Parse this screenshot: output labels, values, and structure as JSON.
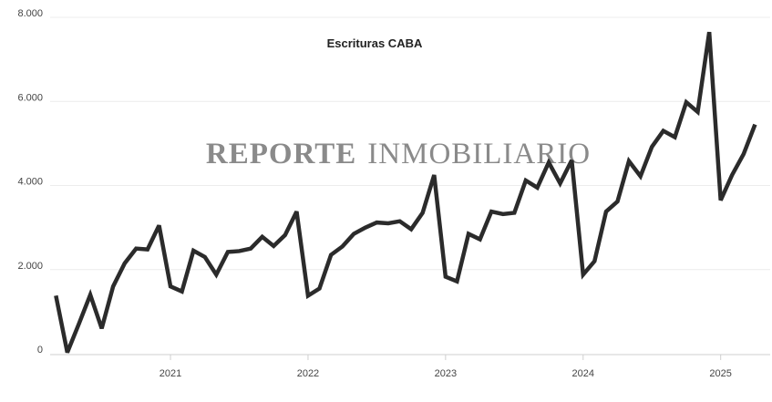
{
  "chart_data": {
    "type": "line",
    "title": "Escrituras CABA",
    "watermark": [
      "REPORTE",
      "INMOBILIARIO"
    ],
    "x": [
      2020.167,
      2020.25,
      2020.333,
      2020.417,
      2020.5,
      2020.583,
      2020.667,
      2020.75,
      2020.833,
      2020.917,
      2021,
      2021.083,
      2021.167,
      2021.25,
      2021.333,
      2021.417,
      2021.5,
      2021.583,
      2021.667,
      2021.75,
      2021.833,
      2021.917,
      2022,
      2022.083,
      2022.167,
      2022.25,
      2022.333,
      2022.417,
      2022.5,
      2022.583,
      2022.667,
      2022.75,
      2022.833,
      2022.917,
      2023,
      2023.083,
      2023.167,
      2023.25,
      2023.333,
      2023.417,
      2023.5,
      2023.583,
      2023.667,
      2023.75,
      2023.833,
      2023.917,
      2024,
      2024.083,
      2024.167,
      2024.25,
      2024.333,
      2024.417,
      2024.5,
      2024.583,
      2024.667,
      2024.75,
      2024.833,
      2024.917,
      2025,
      2025.083,
      2025.167,
      2025.25
    ],
    "series": [
      {
        "name": "Escrituras",
        "color": "#2b2b2b",
        "values": [
          1380,
          30,
          700,
          1400,
          600,
          1600,
          2150,
          2500,
          2480,
          3050,
          1600,
          1480,
          2450,
          2300,
          1880,
          2420,
          2440,
          2500,
          2780,
          2560,
          2820,
          3380,
          1380,
          1550,
          2350,
          2550,
          2850,
          3000,
          3120,
          3100,
          3150,
          2960,
          3350,
          4250,
          1830,
          1720,
          2850,
          2720,
          3380,
          3320,
          3350,
          4120,
          3950,
          4550,
          4050,
          4600,
          1880,
          2200,
          3380,
          3620,
          4580,
          4220,
          4920,
          5300,
          5150,
          5980,
          5750,
          7650,
          3650,
          4250,
          4750,
          5450
        ]
      }
    ],
    "xlim": [
      2020.125,
      2025.36
    ],
    "xticks": [
      2021,
      2022,
      2023,
      2024,
      2025
    ],
    "ylim": [
      0,
      8000
    ],
    "yticks": [
      0,
      {
        "value": 2000,
        "label": "2.000"
      },
      {
        "value": 4000,
        "label": "4.000"
      },
      {
        "value": 6000,
        "label": "6.000"
      },
      {
        "value": 8000,
        "label": "8.000"
      }
    ],
    "grid": true
  }
}
